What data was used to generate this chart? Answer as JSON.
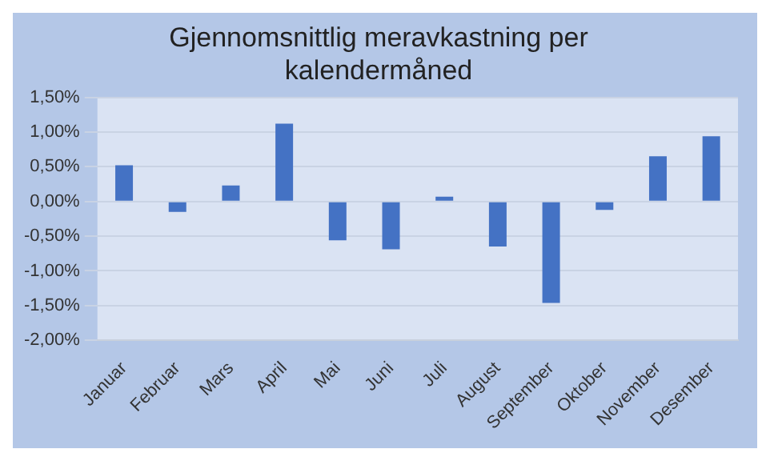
{
  "chart_data": {
    "type": "bar",
    "title": "Gjennomsnittlig meravkastning per kalendermåned",
    "categories": [
      "Januar",
      "Februar",
      "Mars",
      "April",
      "Mai",
      "Juni",
      "Juli",
      "August",
      "September",
      "Oktober",
      "November",
      "Desember"
    ],
    "values": [
      0.52,
      -0.15,
      0.23,
      1.12,
      -0.56,
      -0.69,
      0.07,
      -0.65,
      -1.46,
      -0.12,
      0.65,
      0.94
    ],
    "color": "#4472c4",
    "ylim": [
      -2,
      1.5
    ],
    "yticks": [
      {
        "value": -2,
        "label": "-2,00%"
      },
      {
        "value": -1.5,
        "label": "-1,50%"
      },
      {
        "value": -1,
        "label": "-1,00%"
      },
      {
        "value": -0.5,
        "label": "-0,50%"
      },
      {
        "value": 0,
        "label": "0,00%"
      },
      {
        "value": 0.5,
        "label": "0,50%"
      },
      {
        "value": 1,
        "label": "1,00%"
      },
      {
        "value": 1.5,
        "label": "1,50%"
      }
    ],
    "grid": "y"
  }
}
